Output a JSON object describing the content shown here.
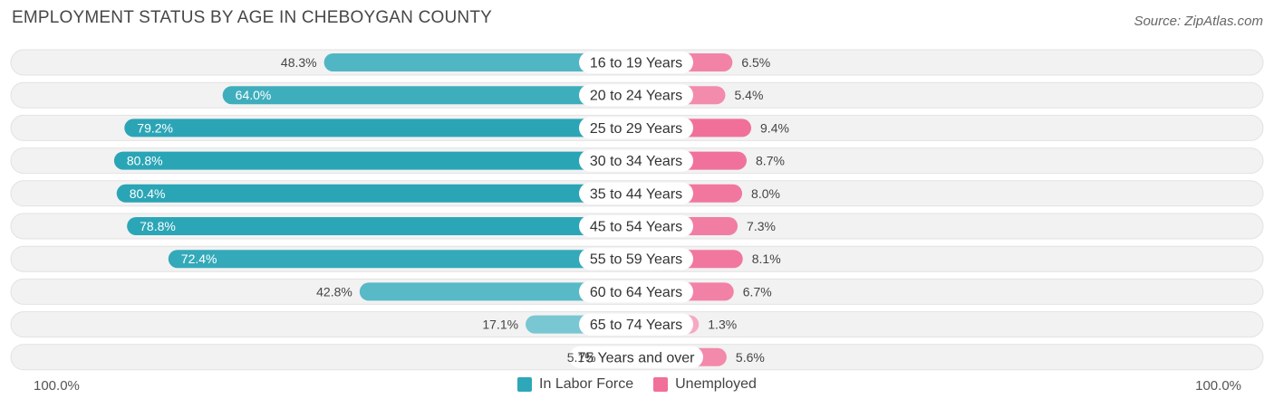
{
  "title": "EMPLOYMENT STATUS BY AGE IN CHEBOYGAN COUNTY",
  "source": "Source: ZipAtlas.com",
  "axis": {
    "left_label": "100.0%",
    "right_label": "100.0%"
  },
  "legend": [
    {
      "label": "In Labor Force",
      "color": "#2ea7b8"
    },
    {
      "label": "Unemployed",
      "color": "#f0709a"
    }
  ],
  "chart_data": {
    "type": "bar",
    "orientation": "horizontal-diverging",
    "title": "EMPLOYMENT STATUS BY AGE IN CHEBOYGAN COUNTY",
    "categories": [
      "16 to 19 Years",
      "20 to 24 Years",
      "25 to 29 Years",
      "30 to 34 Years",
      "35 to 44 Years",
      "45 to 54 Years",
      "55 to 59 Years",
      "60 to 64 Years",
      "65 to 74 Years",
      "75 Years and over"
    ],
    "series": [
      {
        "name": "In Labor Force",
        "values": [
          48.3,
          64.0,
          79.2,
          80.8,
          80.4,
          78.8,
          72.4,
          42.8,
          17.1,
          5.1
        ],
        "labels": [
          "48.3%",
          "64.0%",
          "79.2%",
          "80.8%",
          "80.4%",
          "78.8%",
          "72.4%",
          "42.8%",
          "17.1%",
          "5.1%"
        ]
      },
      {
        "name": "Unemployed",
        "values": [
          6.5,
          5.4,
          9.4,
          8.7,
          8.0,
          7.3,
          8.1,
          6.7,
          1.3,
          5.6
        ],
        "labels": [
          "6.5%",
          "5.4%",
          "9.4%",
          "8.7%",
          "8.0%",
          "7.3%",
          "8.1%",
          "6.7%",
          "1.3%",
          "5.6%"
        ]
      }
    ],
    "xlim": [
      -100,
      100
    ],
    "legend_position": "bottom-center"
  }
}
